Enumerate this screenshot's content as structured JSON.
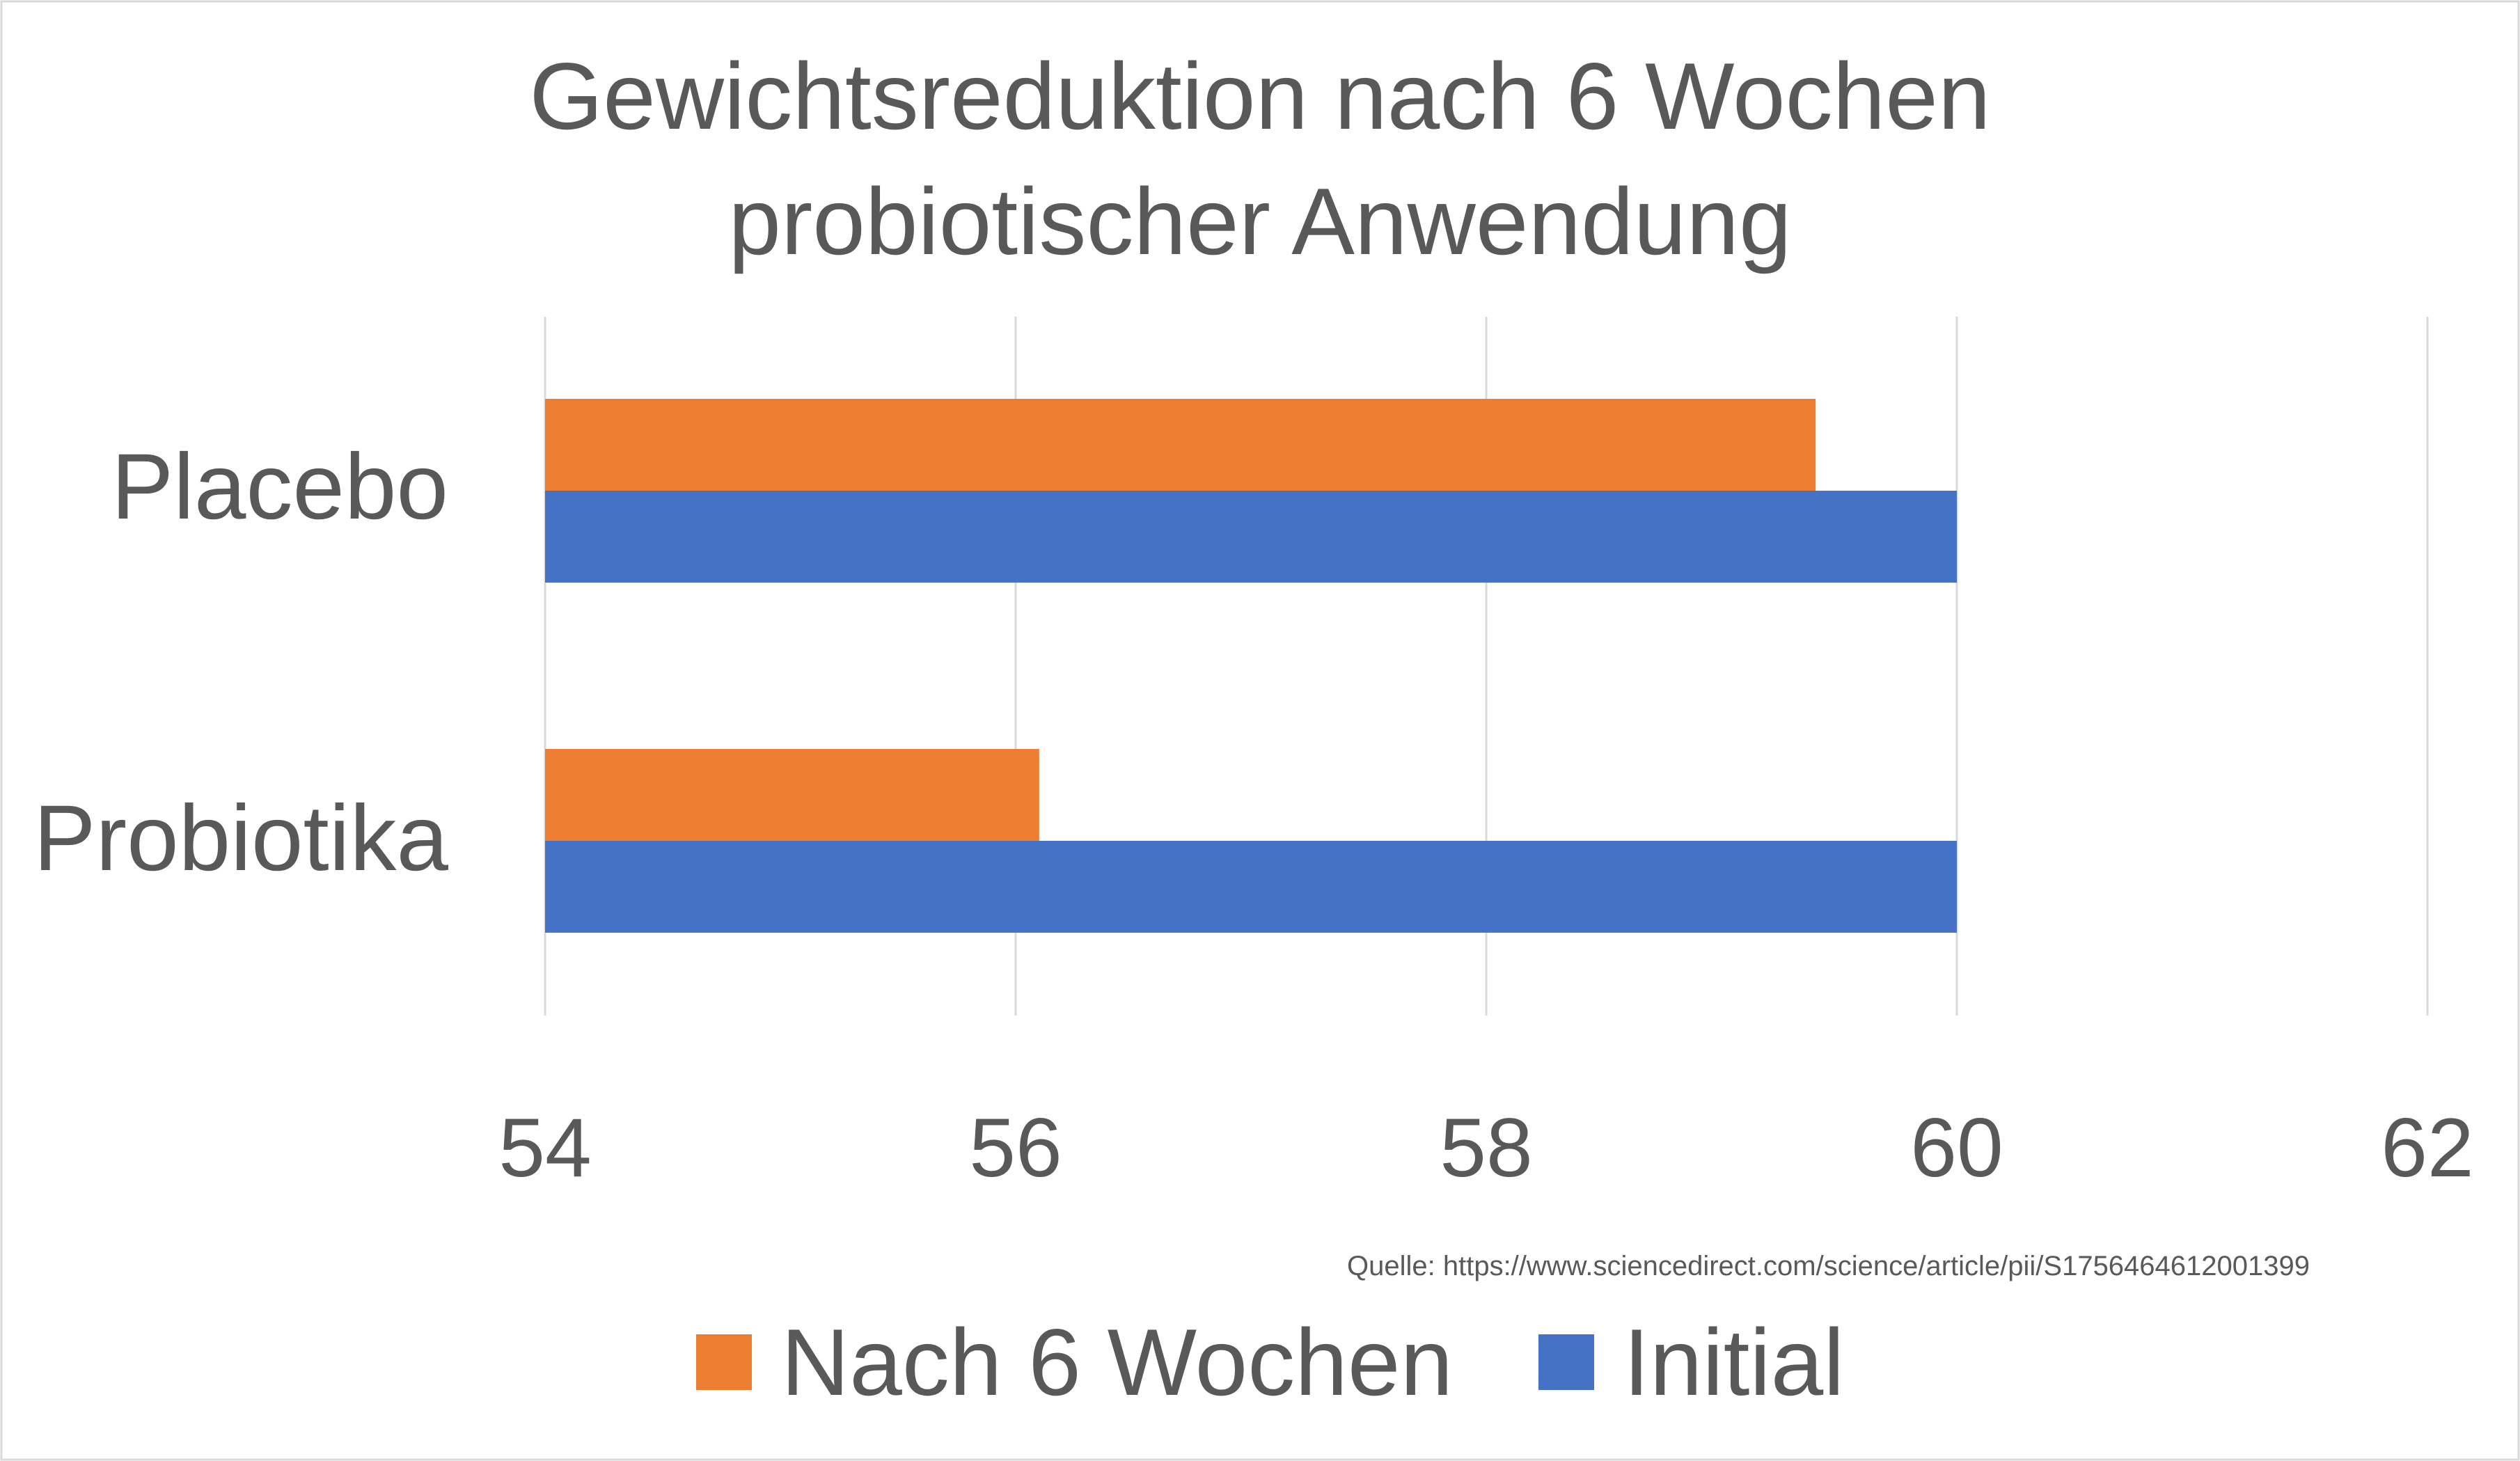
{
  "chart_data": {
    "type": "bar",
    "orientation": "horizontal",
    "title": [
      "Gewichtsreduktion nach 6 Wochen",
      "probiotischer Anwendung"
    ],
    "categories": [
      "Placebo",
      "Probiotika"
    ],
    "series": [
      {
        "name": "Nach 6 Wochen",
        "color": "#ED7D31",
        "values": [
          59.4,
          56.1
        ]
      },
      {
        "name": "Initial",
        "color": "#4472C4",
        "values": [
          60,
          60
        ]
      }
    ],
    "xlim": [
      54,
      62
    ],
    "xticks": [
      "54",
      "56",
      "58",
      "60",
      "62"
    ],
    "grid": true,
    "legend": "bottom",
    "source": "Quelle: https://www.sciencedirect.com/science/article/pii/S1756464612001399"
  }
}
